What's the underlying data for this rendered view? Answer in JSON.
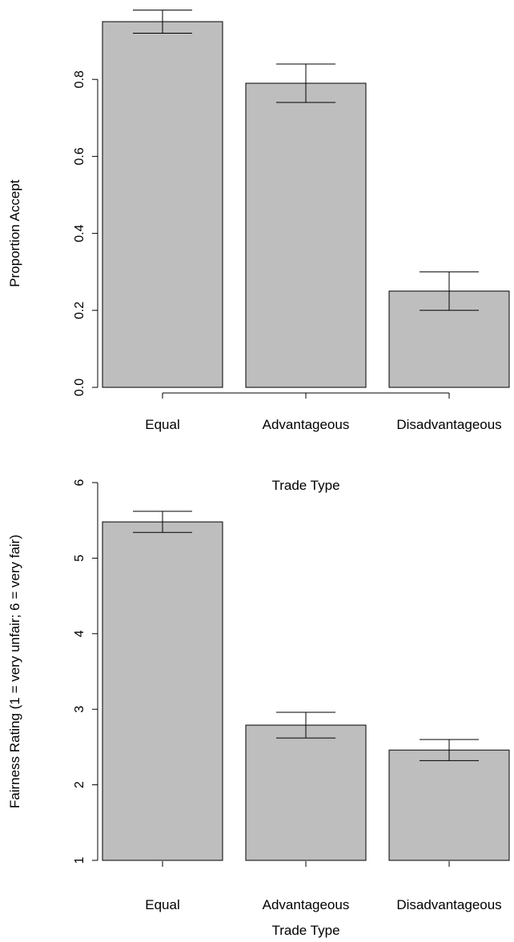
{
  "chart_data": [
    {
      "type": "bar",
      "title": "",
      "xlabel": "Trade Type",
      "ylabel": "Proportion Accept",
      "categories": [
        "Equal",
        "Advantageous",
        "Disadvantageous"
      ],
      "values": [
        0.95,
        0.79,
        0.25
      ],
      "error_low": [
        0.92,
        0.74,
        0.2
      ],
      "error_high": [
        0.98,
        0.84,
        0.3
      ],
      "ylim": [
        0,
        1.0
      ],
      "yticks": [
        0.0,
        0.2,
        0.4,
        0.6,
        0.8
      ],
      "ytick_labels": [
        "0.0",
        "0.2",
        "0.4",
        "0.6",
        "0.8"
      ],
      "bar_color": "#bebebe",
      "grid": false
    },
    {
      "type": "bar",
      "title": "",
      "xlabel": "Trade Type",
      "ylabel": "Fairness Rating (1 = very unfair; 6 = very fair)",
      "categories": [
        "Equal",
        "Advantageous",
        "Disadvantageous"
      ],
      "values": [
        5.48,
        2.79,
        2.46
      ],
      "error_low": [
        5.34,
        2.62,
        2.32
      ],
      "error_high": [
        5.62,
        2.96,
        2.6
      ],
      "ylim": [
        1,
        6
      ],
      "yticks": [
        1,
        2,
        3,
        4,
        5,
        6
      ],
      "ytick_labels": [
        "1",
        "2",
        "3",
        "4",
        "5",
        "6"
      ],
      "bar_color": "#bebebe",
      "grid": false
    }
  ]
}
